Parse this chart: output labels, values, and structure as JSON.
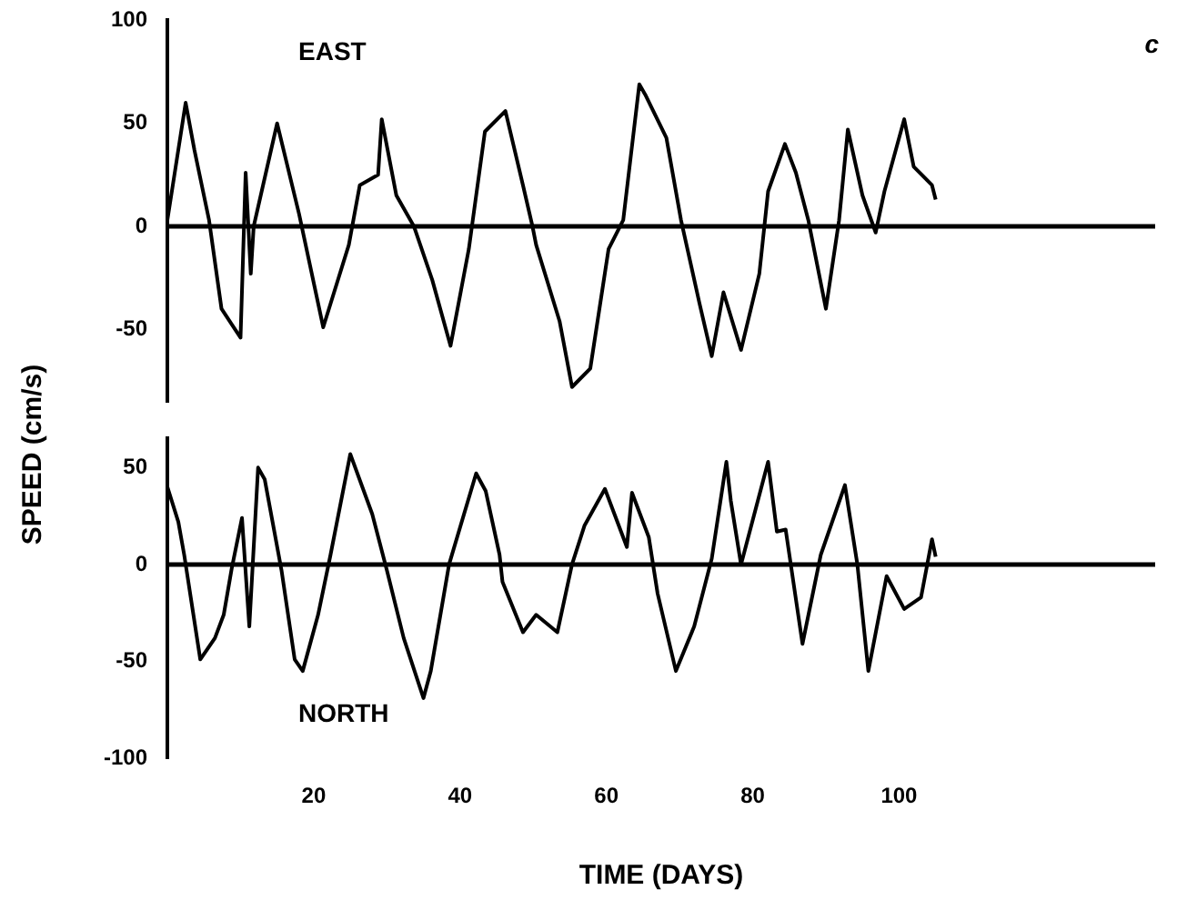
{
  "chart_data": [
    {
      "type": "line",
      "title": "EAST",
      "ylabel": "SPEED (cm/s)",
      "annotations": [
        "c"
      ],
      "xlim": [
        0,
        135
      ],
      "ylim": [
        -85,
        100
      ],
      "yticks": [
        -50,
        0,
        50,
        100
      ],
      "tick_labels": "y",
      "grid": false,
      "legend": false,
      "marker": "none",
      "line_style": "solid",
      "ref_lines": [
        {
          "axis": "y",
          "value": 0,
          "color": "#000000"
        }
      ],
      "series": [
        {
          "color": "#000000",
          "x": [
            0,
            2.5,
            3.7,
            5.7,
            7.4,
            10,
            10.7,
            11.4,
            11.8,
            15,
            18,
            21.3,
            24.8,
            26.3,
            28.8,
            29.3,
            31.3,
            33.7,
            36.2,
            38.7,
            41.2,
            43.4,
            46.2,
            48.6,
            49.9,
            50.4,
            53.6,
            55.3,
            57.8,
            60.3,
            62.3,
            64.5,
            65.3,
            68.2,
            70.2,
            72.7,
            74.4,
            76,
            78.4,
            80.9,
            82.1,
            84.4,
            85.9,
            87.6,
            90,
            91.8,
            93,
            95,
            96.8,
            98,
            100.7,
            102,
            104.5,
            105
          ],
          "values": [
            3,
            60,
            37,
            3,
            -40,
            -54,
            26,
            -23,
            0,
            50,
            6,
            -49,
            -9,
            20,
            25,
            52,
            15,
            0,
            -26,
            -58,
            -11,
            46,
            56,
            20,
            0,
            -9,
            -46,
            -78,
            -69,
            -11,
            3,
            69,
            64,
            43,
            3,
            -37,
            -63,
            -32,
            -60,
            -23,
            17,
            40,
            26,
            3,
            -40,
            3,
            47,
            15,
            -3,
            17,
            52,
            29,
            20,
            13
          ]
        }
      ]
    },
    {
      "type": "line",
      "title": "NORTH",
      "xlabel": "TIME (DAYS)",
      "xlim": [
        0,
        135
      ],
      "xticks": [
        20,
        40,
        60,
        80,
        100
      ],
      "ylim": [
        -100,
        65
      ],
      "yticks": [
        -100,
        -50,
        0,
        50
      ],
      "grid": false,
      "legend": false,
      "marker": "none",
      "line_style": "solid",
      "ref_lines": [
        {
          "axis": "y",
          "value": 0,
          "color": "#000000"
        }
      ],
      "series": [
        {
          "color": "#000000",
          "x": [
            0,
            1.5,
            2.3,
            4.5,
            6.5,
            7.7,
            8.8,
            10.2,
            11.2,
            12.4,
            13.3,
            15.6,
            17.4,
            18.5,
            20.6,
            22.3,
            25,
            28,
            30,
            32.3,
            35,
            36,
            38.5,
            42.2,
            43.5,
            45.4,
            45.8,
            48.6,
            50.4,
            53.3,
            55.3,
            57,
            59.8,
            61.1,
            62.8,
            63.5,
            65.8,
            67,
            69.5,
            72,
            74.4,
            76.4,
            77,
            78.4,
            82.1,
            83.3,
            84.5,
            86.8,
            89.3,
            92.6,
            94.3,
            95.8,
            98.3,
            100.7,
            103,
            104.5,
            105
          ],
          "values": [
            40,
            22,
            5,
            -49,
            -38,
            -26,
            -2,
            24,
            -32,
            50,
            44,
            -3,
            -49,
            -55,
            -26,
            5,
            57,
            26,
            -3,
            -38,
            -69,
            -55,
            0,
            47,
            38,
            5,
            -9,
            -35,
            -26,
            -35,
            0,
            20,
            39,
            26,
            9,
            37,
            14,
            -15,
            -55,
            -32,
            3,
            53,
            33,
            0,
            53,
            17,
            18,
            -41,
            5,
            41,
            0,
            -55,
            -6,
            -23,
            -17,
            13,
            4
          ]
        }
      ]
    }
  ]
}
